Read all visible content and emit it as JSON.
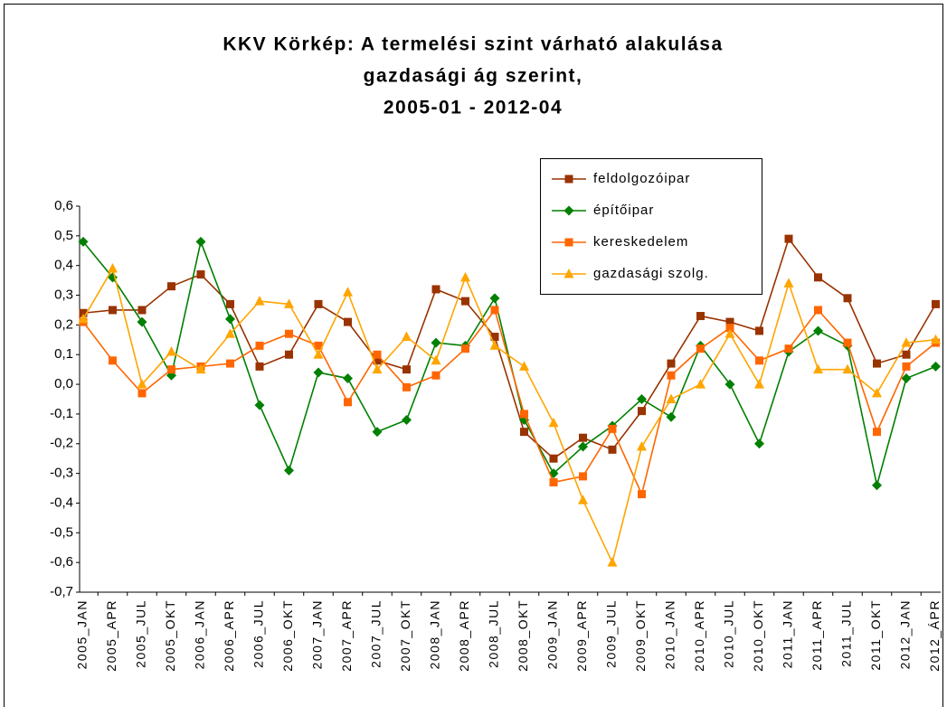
{
  "chart_data": {
    "type": "line",
    "title": [
      "KKV Körkép: A termelési szint várható alakulása",
      "gazdasági ág szerint,",
      "2005-01 - 2012-04"
    ],
    "categories": [
      "2005_JAN",
      "2005_APR",
      "2005_JUL",
      "2005_OKT",
      "2006_JAN",
      "2006_APR",
      "2006_JUL",
      "2006_OKT",
      "2007_JAN",
      "2007_APR",
      "2007_JUL",
      "2007_OKT",
      "2008_JAN",
      "2008_APR",
      "2008_JUL",
      "2008_OKT",
      "2009_JAN",
      "2009_APR",
      "2009_JUL",
      "2009_OKT",
      "2010_JAN",
      "2010_APR",
      "2010_JUL",
      "2010_OKT",
      "2011_JAN",
      "2011_APR",
      "2011_JUL",
      "2011_OKT",
      "2012_JAN",
      "2012_ÁPR"
    ],
    "series": [
      {
        "name": "feldolgozóipar",
        "color": "#993300",
        "marker": "square",
        "values": [
          0.24,
          0.25,
          0.25,
          0.33,
          0.37,
          0.27,
          0.06,
          0.1,
          0.27,
          0.21,
          0.08,
          0.05,
          0.32,
          0.28,
          0.16,
          -0.16,
          -0.25,
          -0.18,
          -0.22,
          -0.09,
          0.07,
          0.23,
          0.21,
          0.18,
          0.49,
          0.36,
          0.29,
          0.07,
          0.1,
          0.27
        ]
      },
      {
        "name": "építőipar",
        "color": "#008000",
        "marker": "diamond",
        "values": [
          0.48,
          0.36,
          0.21,
          0.03,
          0.48,
          0.22,
          -0.07,
          -0.29,
          0.04,
          0.02,
          -0.16,
          -0.12,
          0.14,
          0.13,
          0.29,
          -0.12,
          -0.3,
          -0.21,
          -0.14,
          -0.05,
          -0.11,
          0.13,
          0.0,
          -0.2,
          0.11,
          0.18,
          0.13,
          -0.34,
          0.02,
          0.06
        ]
      },
      {
        "name": "kereskedelem",
        "color": "#ff6600",
        "marker": "square",
        "values": [
          0.21,
          0.08,
          -0.03,
          0.05,
          0.06,
          0.07,
          0.13,
          0.17,
          0.13,
          -0.06,
          0.1,
          -0.01,
          0.03,
          0.12,
          0.25,
          -0.1,
          -0.33,
          -0.31,
          -0.15,
          -0.37,
          0.03,
          0.12,
          0.19,
          0.08,
          0.12,
          0.25,
          0.14,
          -0.16,
          0.06,
          0.14
        ]
      },
      {
        "name": "gazdasági szolg.",
        "color": "#ffa500",
        "marker": "triangle",
        "values": [
          0.22,
          0.39,
          0.0,
          0.11,
          0.05,
          0.17,
          0.28,
          0.27,
          0.1,
          0.31,
          0.05,
          0.16,
          0.08,
          0.36,
          0.13,
          0.06,
          -0.13,
          -0.39,
          -0.6,
          -0.21,
          -0.05,
          0.0,
          0.17,
          0.0,
          0.34,
          0.05,
          0.05,
          -0.03,
          0.14,
          0.15
        ]
      }
    ],
    "ylim": [
      -0.7,
      0.6
    ],
    "yticks": [
      {
        "value": 0.6,
        "label": "0,6"
      },
      {
        "value": 0.5,
        "label": "0,5"
      },
      {
        "value": 0.4,
        "label": "0,4"
      },
      {
        "value": 0.3,
        "label": "0,3"
      },
      {
        "value": 0.2,
        "label": "0,2"
      },
      {
        "value": 0.1,
        "label": "0,1"
      },
      {
        "value": 0,
        "label": "0,0"
      },
      {
        "value": -0.1,
        "label": "-0,1"
      },
      {
        "value": -0.2,
        "label": "-0,2"
      },
      {
        "value": -0.3,
        "label": "-0,3"
      },
      {
        "value": -0.4,
        "label": "-0,4"
      },
      {
        "value": -0.5,
        "label": "-0,5"
      },
      {
        "value": -0.6,
        "label": "-0,6"
      },
      {
        "value": -0.7,
        "label": "-0,7"
      }
    ],
    "grid": false,
    "legend": "upper right"
  }
}
